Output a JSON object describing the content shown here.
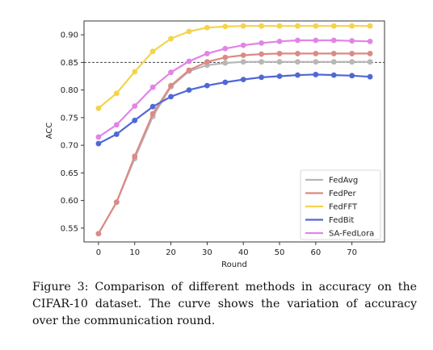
{
  "chart_data": {
    "type": "line",
    "xlabel": "Round",
    "ylabel": "ACC",
    "x": [
      0,
      5,
      10,
      15,
      20,
      25,
      30,
      35,
      40,
      45,
      50,
      55,
      60,
      65,
      70,
      75
    ],
    "xlim": [
      -4,
      79
    ],
    "ylim": [
      0.525,
      0.925
    ],
    "xticks": [
      "0",
      "10",
      "20",
      "30",
      "40",
      "50",
      "60",
      "70"
    ],
    "yticks": [
      "0.55",
      "0.60",
      "0.65",
      "0.70",
      "0.75",
      "0.80",
      "0.85",
      "0.90"
    ],
    "reference_line": {
      "y": 0.85,
      "style": "dashed",
      "color": "#444444"
    },
    "legend_position": "lower-right",
    "series": [
      {
        "name": "FedAvg",
        "color": "#b7b7b7",
        "values": [
          0.54,
          0.597,
          0.676,
          0.752,
          0.806,
          0.834,
          0.845,
          0.849,
          0.851,
          0.851,
          0.851,
          0.851,
          0.851,
          0.851,
          0.851,
          0.851
        ]
      },
      {
        "name": "FedPer",
        "color": "#dc8a85",
        "values": [
          0.54,
          0.597,
          0.68,
          0.757,
          0.808,
          0.836,
          0.851,
          0.859,
          0.863,
          0.865,
          0.866,
          0.866,
          0.866,
          0.866,
          0.866,
          0.866
        ]
      },
      {
        "name": "FedFFT",
        "color": "#f3d44b",
        "values": [
          0.767,
          0.794,
          0.833,
          0.87,
          0.893,
          0.906,
          0.913,
          0.915,
          0.916,
          0.916,
          0.916,
          0.916,
          0.916,
          0.916,
          0.916,
          0.916
        ]
      },
      {
        "name": "FedBit",
        "color": "#4f68d6",
        "values": [
          0.703,
          0.72,
          0.745,
          0.77,
          0.788,
          0.8,
          0.808,
          0.814,
          0.819,
          0.823,
          0.825,
          0.827,
          0.828,
          0.827,
          0.826,
          0.824
        ]
      },
      {
        "name": "SA-FedLora",
        "color": "#e184e6",
        "values": [
          0.715,
          0.737,
          0.771,
          0.805,
          0.832,
          0.852,
          0.866,
          0.875,
          0.881,
          0.885,
          0.888,
          0.89,
          0.89,
          0.89,
          0.889,
          0.888
        ]
      }
    ]
  },
  "caption": "Figure 3:  Comparison of different methods in accuracy on the CIFAR-10 dataset. The curve shows the variation of accuracy over the communication round."
}
